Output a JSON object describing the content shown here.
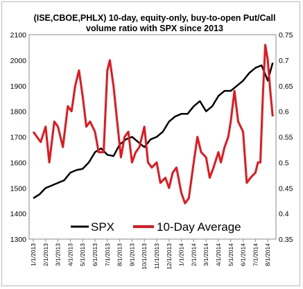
{
  "chart_data": {
    "type": "line",
    "title": "(ISE,CBOE,PHLX) 10-day, equity-only, buy-to-open Put/Call volume ratio with SPX since 2013",
    "title_lines": [
      "(ISE,CBOE,PHLX) 10-day, equity-only, buy-to-open Put/Call",
      "volume ratio with SPX since 2013"
    ],
    "x_tick_labels": [
      "1/1/2013",
      "2/1/2013",
      "3/1/2013",
      "4/1/2013",
      "5/1/2013",
      "6/1/2013",
      "7/1/2013",
      "8/1/2013",
      "9/1/2013",
      "10/1/2013",
      "11/1/2013",
      "12/1/2013",
      "1/1/2014",
      "2/1/2014",
      "3/1/2014",
      "4/1/2014",
      "5/1/2014",
      "6/1/2014",
      "7/1/2014",
      "8/1/2014"
    ],
    "y_left": {
      "ticks": [
        1300,
        1400,
        1500,
        1600,
        1700,
        1800,
        1900,
        2000,
        2100
      ],
      "lim": [
        1300,
        2100
      ]
    },
    "y_right": {
      "ticks": [
        0.35,
        0.4,
        0.45,
        0.5,
        0.55,
        0.6,
        0.65,
        0.7,
        0.75
      ],
      "lim": [
        0.35,
        0.75
      ]
    },
    "grid": false,
    "legend_placement": "bottom-center",
    "series": [
      {
        "name": "SPX",
        "axis": "left",
        "color": "#000000",
        "x": [
          0,
          0.5,
          1,
          1.5,
          2,
          2.5,
          3,
          3.5,
          4,
          4.5,
          5,
          5.5,
          6,
          6.5,
          7,
          7.5,
          8,
          8.5,
          9,
          9.5,
          10,
          10.5,
          11,
          11.5,
          12,
          12.5,
          13,
          13.5,
          14,
          14.5,
          15,
          15.5,
          16,
          16.5,
          17,
          17.5,
          18,
          18.5,
          19,
          19.4
        ],
        "values": [
          1460,
          1475,
          1500,
          1510,
          1520,
          1530,
          1560,
          1570,
          1575,
          1600,
          1640,
          1655,
          1630,
          1625,
          1670,
          1690,
          1700,
          1680,
          1660,
          1690,
          1700,
          1720,
          1760,
          1780,
          1790,
          1790,
          1820,
          1840,
          1800,
          1820,
          1860,
          1880,
          1880,
          1900,
          1920,
          1950,
          1970,
          1980,
          1920,
          1990
        ]
      },
      {
        "name": "10-Day Average",
        "axis": "right",
        "color": "#e8161c",
        "x": [
          0,
          0.3,
          0.6,
          1,
          1.3,
          1.7,
          2,
          2.4,
          2.8,
          3.1,
          3.4,
          3.7,
          4,
          4.3,
          4.6,
          5,
          5.3,
          5.7,
          6,
          6.2,
          6.5,
          6.8,
          7.1,
          7.4,
          7.7,
          8,
          8.3,
          8.6,
          9,
          9.3,
          9.6,
          10,
          10.3,
          10.7,
          11,
          11.3,
          11.6,
          12,
          12.3,
          12.6,
          13,
          13.3,
          13.6,
          14,
          14.3,
          14.6,
          15,
          15.2,
          15.5,
          15.8,
          16,
          16.3,
          16.6,
          17,
          17.3,
          17.6,
          18,
          18.2,
          18.4,
          18.6,
          18.8,
          19,
          19.2,
          19.4
        ],
        "values": [
          0.56,
          0.55,
          0.54,
          0.57,
          0.5,
          0.58,
          0.57,
          0.53,
          0.61,
          0.6,
          0.65,
          0.68,
          0.63,
          0.57,
          0.58,
          0.56,
          0.52,
          0.52,
          0.68,
          0.7,
          0.65,
          0.58,
          0.51,
          0.55,
          0.56,
          0.5,
          0.52,
          0.53,
          0.57,
          0.5,
          0.49,
          0.5,
          0.46,
          0.47,
          0.45,
          0.48,
          0.49,
          0.44,
          0.42,
          0.43,
          0.5,
          0.55,
          0.52,
          0.51,
          0.47,
          0.49,
          0.52,
          0.5,
          0.53,
          0.55,
          0.58,
          0.64,
          0.58,
          0.56,
          0.46,
          0.47,
          0.48,
          0.5,
          0.5,
          0.63,
          0.73,
          0.7,
          0.64,
          0.59
        ]
      }
    ]
  }
}
